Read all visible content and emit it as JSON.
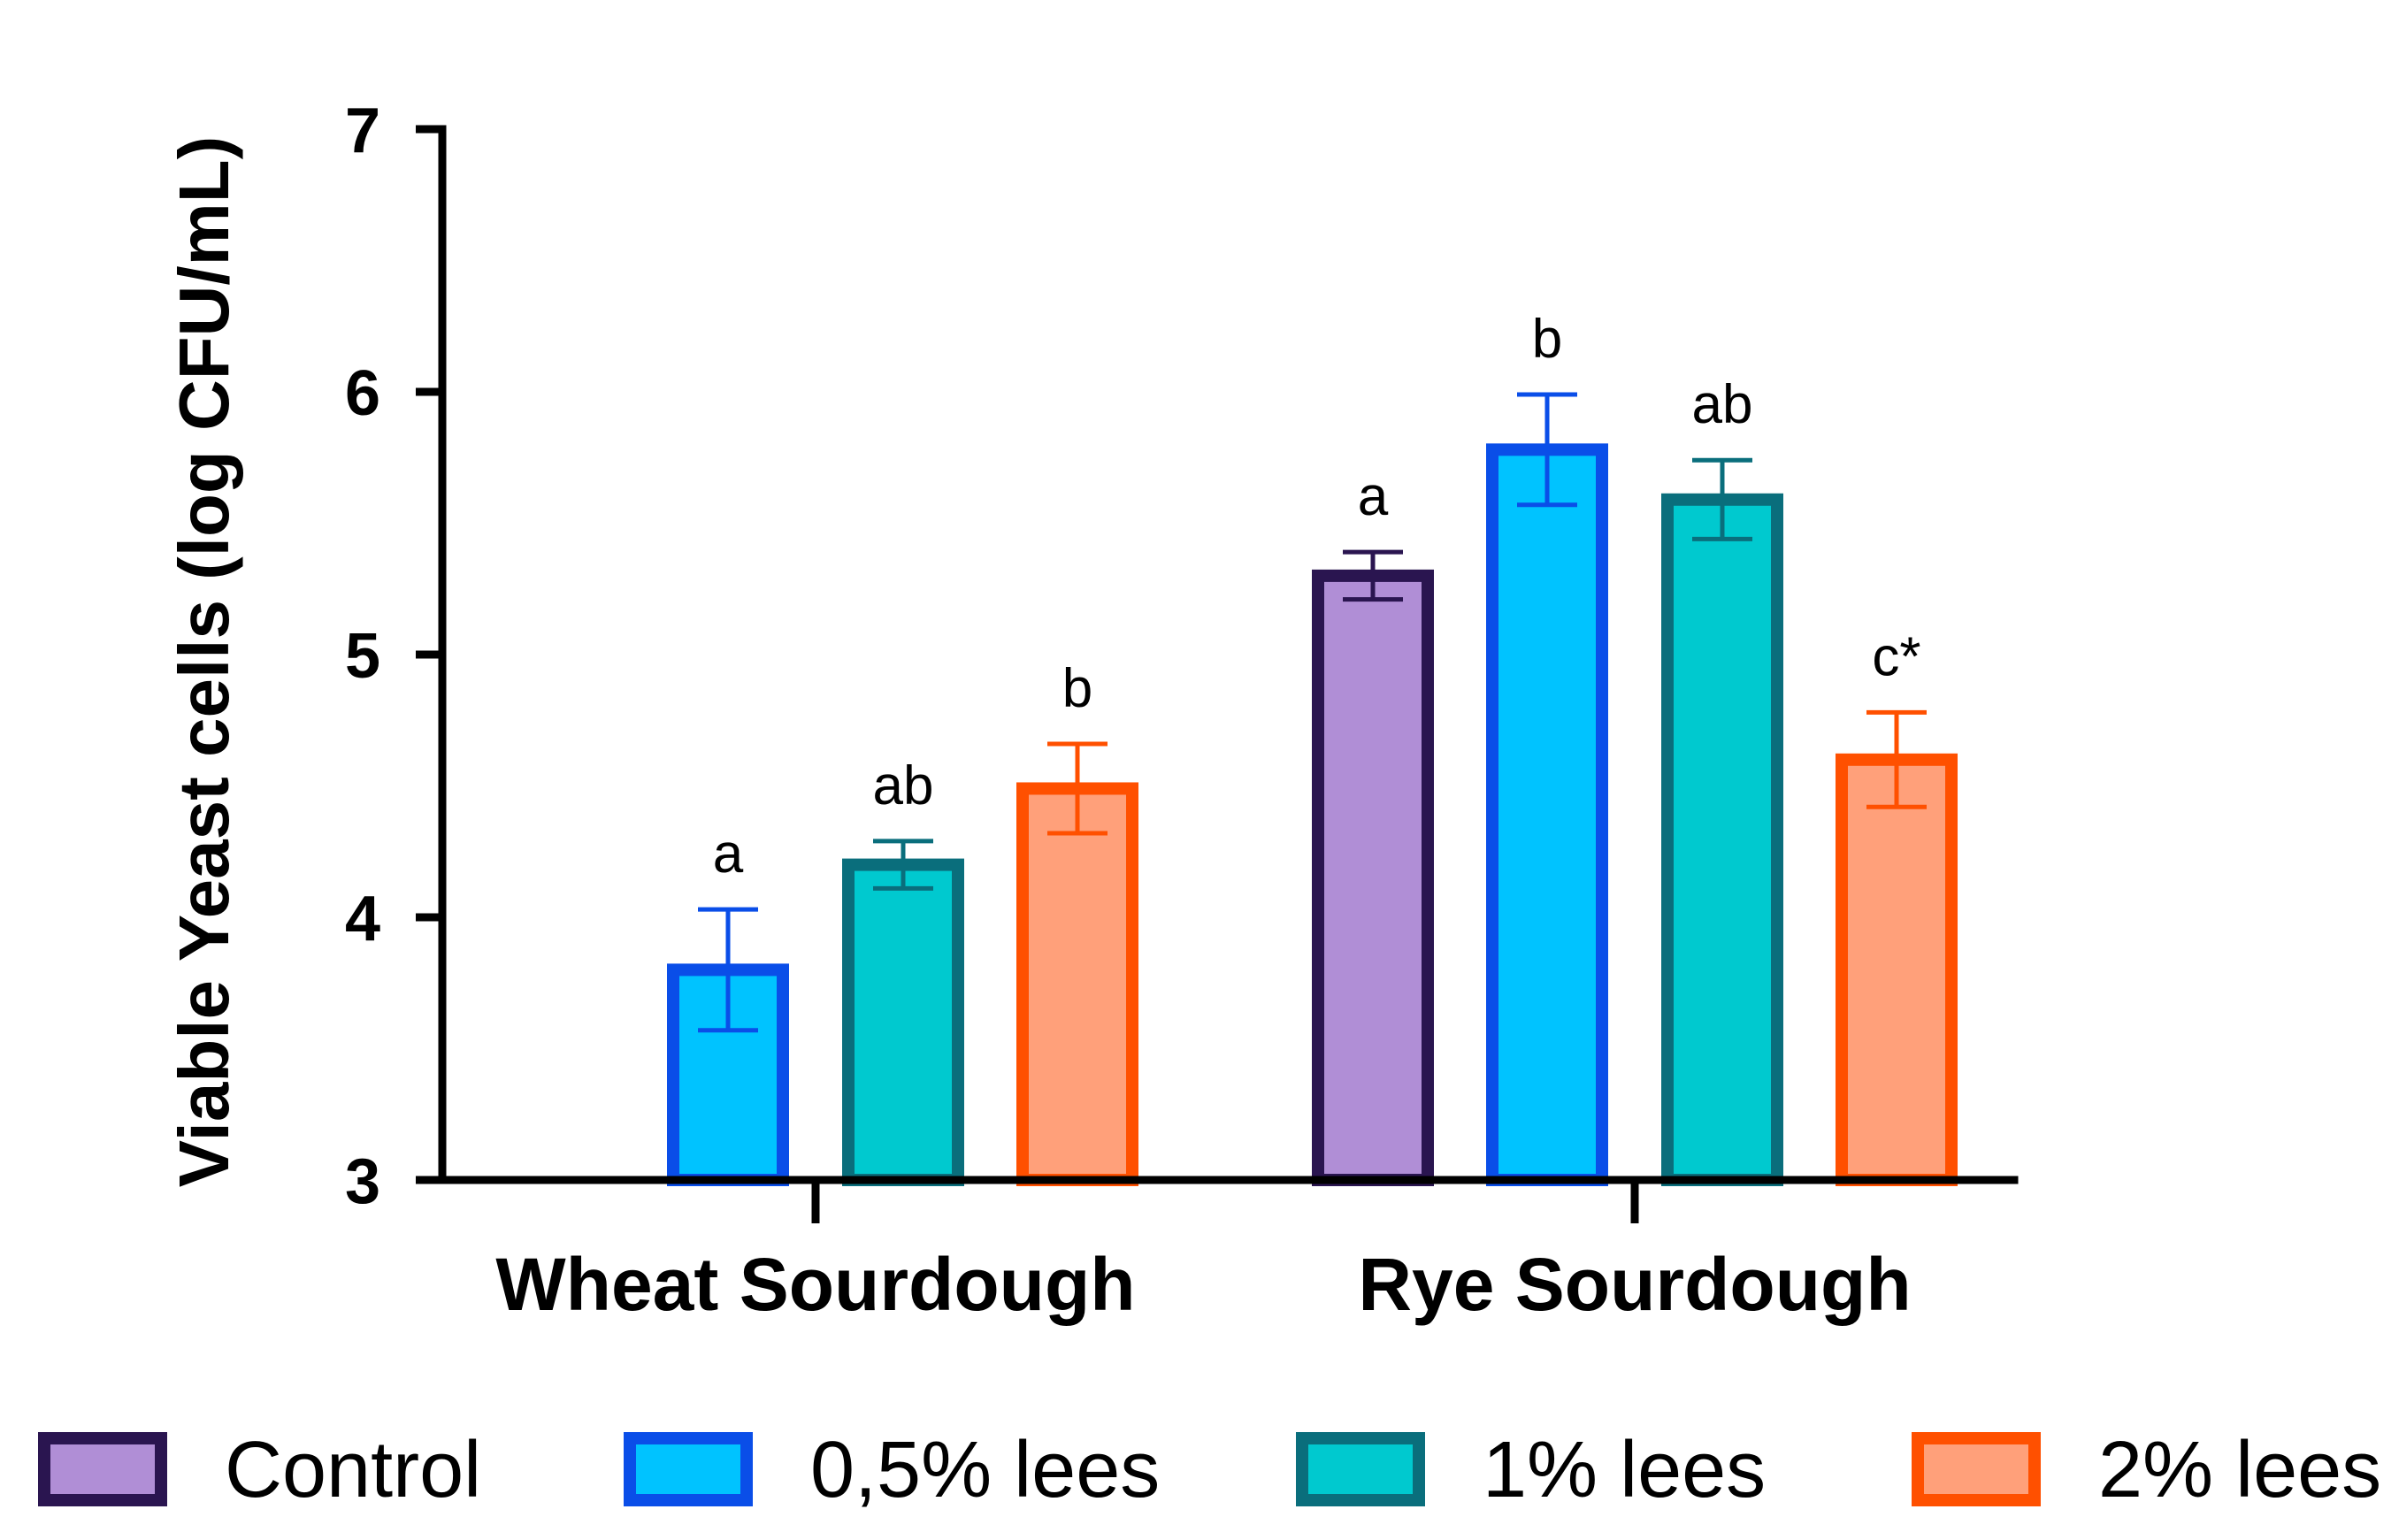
{
  "chart_data": {
    "type": "bar",
    "ylabel": "Viable Yeast cells (log CFU/mL)",
    "xlabel": "",
    "ylim": [
      3,
      7
    ],
    "yticks": [
      "3",
      "4",
      "5",
      "6",
      "7"
    ],
    "categories": [
      "Wheat Sourdough",
      "Rye Sourdough"
    ],
    "legend_position": "bottom",
    "series": [
      {
        "name": "Control",
        "fill": "#b08ed6",
        "stroke": "#2a1550",
        "values": [
          null,
          5.3
        ],
        "errors": [
          null,
          0.09
        ],
        "labels": [
          "",
          "a"
        ]
      },
      {
        "name": "0,5% lees",
        "fill": "#00c3ff",
        "stroke": "#0a4ee8",
        "values": [
          3.8,
          5.78
        ],
        "errors": [
          0.23,
          0.21
        ],
        "labels": [
          "a",
          "b"
        ]
      },
      {
        "name": "1% lees",
        "fill": "#00c9cf",
        "stroke": "#0a6e7c",
        "values": [
          4.2,
          5.59
        ],
        "errors": [
          0.09,
          0.15
        ],
        "labels": [
          "ab",
          "ab"
        ]
      },
      {
        "name": "2% lees",
        "fill": "#ffa07a",
        "stroke": "#ff5000",
        "values": [
          4.49,
          4.6
        ],
        "errors": [
          0.17,
          0.18
        ],
        "labels": [
          "b",
          "c*"
        ]
      }
    ]
  }
}
